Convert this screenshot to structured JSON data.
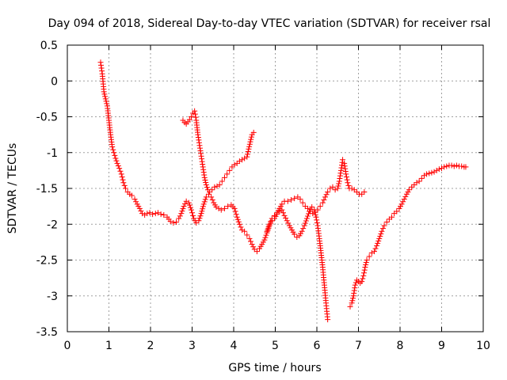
{
  "chart_data": {
    "type": "scatter",
    "title": "Day 094 of 2018, Sidereal Day-to-day VTEC variation (SDTVAR) for receiver rsal",
    "xlabel": "GPS time / hours",
    "ylabel": "SDTVAR / TECUs",
    "xlim": [
      0,
      10
    ],
    "ylim": [
      -3.5,
      0.5
    ],
    "xticks": [
      0,
      1,
      2,
      3,
      4,
      5,
      6,
      7,
      8,
      9,
      10
    ],
    "yticks": [
      0.5,
      0,
      -0.5,
      -1,
      -1.5,
      -2,
      -2.5,
      -3,
      -3.5
    ],
    "xtick_labels": [
      "0",
      "1",
      "2",
      "3",
      "4",
      "5",
      "6",
      "7",
      "8",
      "9",
      "10"
    ],
    "ytick_labels": [
      "0.5",
      "0",
      "-0.5",
      "-1",
      "-1.5",
      "-2",
      "-2.5",
      "-3",
      "-3.5"
    ],
    "grid": true,
    "marker": "+",
    "color": "#ff0000",
    "series": [
      {
        "name": "",
        "points": [
          [
            0.8,
            0.26
          ],
          [
            0.84,
            0.1
          ],
          [
            0.88,
            -0.15
          ],
          [
            0.92,
            -0.25
          ],
          [
            0.96,
            -0.35
          ],
          [
            1.0,
            -0.55
          ],
          [
            1.04,
            -0.75
          ],
          [
            1.08,
            -0.92
          ],
          [
            1.12,
            -1.0
          ],
          [
            1.16,
            -1.08
          ],
          [
            1.2,
            -1.15
          ],
          [
            1.25,
            -1.22
          ],
          [
            1.3,
            -1.3
          ],
          [
            1.35,
            -1.42
          ],
          [
            1.4,
            -1.5
          ],
          [
            1.45,
            -1.55
          ],
          [
            1.5,
            -1.58
          ],
          [
            1.55,
            -1.6
          ],
          [
            1.62,
            -1.65
          ],
          [
            1.68,
            -1.72
          ],
          [
            1.74,
            -1.78
          ],
          [
            1.8,
            -1.85
          ],
          [
            1.86,
            -1.87
          ],
          [
            1.92,
            -1.85
          ],
          [
            1.98,
            -1.84
          ],
          [
            2.05,
            -1.86
          ],
          [
            2.12,
            -1.85
          ],
          [
            2.18,
            -1.84
          ],
          [
            2.25,
            -1.86
          ],
          [
            2.32,
            -1.87
          ],
          [
            2.4,
            -1.9
          ],
          [
            2.48,
            -1.96
          ],
          [
            2.55,
            -1.98
          ],
          [
            2.62,
            -1.97
          ],
          [
            2.68,
            -1.92
          ],
          [
            2.74,
            -1.85
          ],
          [
            2.8,
            -1.75
          ],
          [
            2.86,
            -1.68
          ],
          [
            2.92,
            -1.7
          ],
          [
            2.98,
            -1.8
          ],
          [
            3.04,
            -1.92
          ],
          [
            3.1,
            -1.98
          ],
          [
            3.16,
            -1.95
          ],
          [
            3.22,
            -1.85
          ],
          [
            3.28,
            -1.72
          ],
          [
            3.34,
            -1.62
          ],
          [
            3.4,
            -1.58
          ],
          [
            3.46,
            -1.62
          ],
          [
            3.52,
            -1.7
          ],
          [
            3.58,
            -1.76
          ],
          [
            3.64,
            -1.78
          ],
          [
            3.7,
            -1.8
          ],
          [
            3.78,
            -1.78
          ],
          [
            3.86,
            -1.75
          ],
          [
            3.94,
            -1.73
          ],
          [
            4.02,
            -1.78
          ],
          [
            4.08,
            -1.9
          ],
          [
            4.14,
            -2.0
          ],
          [
            4.2,
            -2.08
          ],
          [
            4.26,
            -2.1
          ],
          [
            4.32,
            -2.15
          ],
          [
            4.38,
            -2.2
          ],
          [
            4.44,
            -2.28
          ],
          [
            4.5,
            -2.35
          ],
          [
            4.56,
            -2.38
          ],
          [
            4.62,
            -2.34
          ],
          [
            4.68,
            -2.28
          ],
          [
            4.74,
            -2.22
          ],
          [
            4.8,
            -2.12
          ],
          [
            4.86,
            -2.02
          ],
          [
            4.92,
            -1.95
          ],
          [
            4.98,
            -1.92
          ],
          [
            5.04,
            -1.86
          ],
          [
            5.1,
            -1.82
          ],
          [
            5.16,
            -1.8
          ],
          [
            5.22,
            -1.88
          ],
          [
            5.28,
            -1.95
          ],
          [
            5.34,
            -2.02
          ],
          [
            5.4,
            -2.08
          ],
          [
            5.46,
            -2.14
          ],
          [
            5.52,
            -2.18
          ],
          [
            5.58,
            -2.16
          ],
          [
            5.64,
            -2.1
          ],
          [
            5.7,
            -2.02
          ],
          [
            5.76,
            -1.92
          ],
          [
            5.82,
            -1.82
          ],
          [
            5.88,
            -1.76
          ],
          [
            5.94,
            -1.8
          ],
          [
            5.98,
            -1.9
          ],
          [
            6.02,
            -2.02
          ],
          [
            6.06,
            -2.2
          ],
          [
            6.1,
            -2.4
          ],
          [
            6.14,
            -2.6
          ],
          [
            6.18,
            -2.85
          ],
          [
            6.22,
            -3.1
          ],
          [
            6.26,
            -3.33
          ]
        ]
      },
      {
        "name": "",
        "points": [
          [
            2.78,
            -0.55
          ],
          [
            2.82,
            -0.58
          ],
          [
            2.86,
            -0.6
          ],
          [
            2.9,
            -0.57
          ],
          [
            2.94,
            -0.54
          ],
          [
            2.98,
            -0.5
          ],
          [
            3.02,
            -0.45
          ],
          [
            3.06,
            -0.42
          ],
          [
            3.1,
            -0.55
          ],
          [
            3.14,
            -0.75
          ],
          [
            3.18,
            -0.9
          ],
          [
            3.22,
            -1.05
          ],
          [
            3.26,
            -1.2
          ],
          [
            3.3,
            -1.35
          ],
          [
            3.34,
            -1.45
          ],
          [
            3.38,
            -1.52
          ],
          [
            3.42,
            -1.55
          ],
          [
            3.48,
            -1.52
          ],
          [
            3.54,
            -1.48
          ],
          [
            3.6,
            -1.47
          ],
          [
            3.66,
            -1.45
          ],
          [
            3.72,
            -1.4
          ],
          [
            3.78,
            -1.35
          ],
          [
            3.84,
            -1.3
          ],
          [
            3.9,
            -1.25
          ],
          [
            3.96,
            -1.2
          ],
          [
            4.02,
            -1.17
          ],
          [
            4.08,
            -1.15
          ],
          [
            4.14,
            -1.12
          ],
          [
            4.2,
            -1.1
          ],
          [
            4.26,
            -1.08
          ],
          [
            4.32,
            -1.06
          ],
          [
            4.36,
            -0.95
          ],
          [
            4.4,
            -0.85
          ],
          [
            4.44,
            -0.75
          ],
          [
            4.48,
            -0.72
          ]
        ]
      },
      {
        "name": "",
        "points": [
          [
            4.8,
            -2.1
          ],
          [
            4.86,
            -2.0
          ],
          [
            4.92,
            -1.92
          ],
          [
            4.98,
            -1.88
          ],
          [
            5.04,
            -1.84
          ],
          [
            5.1,
            -1.78
          ],
          [
            5.16,
            -1.72
          ],
          [
            5.22,
            -1.68
          ],
          [
            5.3,
            -1.68
          ],
          [
            5.38,
            -1.66
          ],
          [
            5.46,
            -1.64
          ],
          [
            5.54,
            -1.62
          ],
          [
            5.6,
            -1.65
          ],
          [
            5.66,
            -1.7
          ],
          [
            5.72,
            -1.75
          ],
          [
            5.78,
            -1.78
          ],
          [
            5.84,
            -1.82
          ],
          [
            5.9,
            -1.85
          ],
          [
            5.96,
            -1.83
          ],
          [
            6.02,
            -1.8
          ],
          [
            6.08,
            -1.75
          ],
          [
            6.14,
            -1.7
          ],
          [
            6.2,
            -1.62
          ],
          [
            6.26,
            -1.55
          ],
          [
            6.32,
            -1.5
          ],
          [
            6.38,
            -1.48
          ],
          [
            6.44,
            -1.52
          ],
          [
            6.5,
            -1.5
          ],
          [
            6.54,
            -1.4
          ],
          [
            6.58,
            -1.25
          ],
          [
            6.62,
            -1.1
          ],
          [
            6.66,
            -1.15
          ],
          [
            6.7,
            -1.3
          ],
          [
            6.74,
            -1.42
          ],
          [
            6.78,
            -1.5
          ],
          [
            6.84,
            -1.5
          ],
          [
            6.9,
            -1.52
          ],
          [
            6.96,
            -1.55
          ],
          [
            7.02,
            -1.58
          ],
          [
            7.08,
            -1.58
          ],
          [
            7.14,
            -1.55
          ]
        ]
      },
      {
        "name": "",
        "points": [
          [
            6.8,
            -3.15
          ],
          [
            6.84,
            -3.1
          ],
          [
            6.88,
            -3.0
          ],
          [
            6.92,
            -2.85
          ],
          [
            6.96,
            -2.78
          ],
          [
            7.0,
            -2.8
          ],
          [
            7.04,
            -2.82
          ],
          [
            7.08,
            -2.8
          ],
          [
            7.12,
            -2.72
          ],
          [
            7.16,
            -2.6
          ],
          [
            7.2,
            -2.5
          ],
          [
            7.26,
            -2.45
          ],
          [
            7.32,
            -2.4
          ],
          [
            7.38,
            -2.38
          ],
          [
            7.44,
            -2.3
          ],
          [
            7.5,
            -2.2
          ],
          [
            7.56,
            -2.1
          ],
          [
            7.62,
            -2.02
          ],
          [
            7.68,
            -1.97
          ],
          [
            7.74,
            -1.93
          ],
          [
            7.8,
            -1.9
          ],
          [
            7.86,
            -1.85
          ],
          [
            7.92,
            -1.82
          ],
          [
            7.98,
            -1.78
          ],
          [
            8.04,
            -1.72
          ],
          [
            8.1,
            -1.65
          ],
          [
            8.16,
            -1.58
          ],
          [
            8.22,
            -1.52
          ],
          [
            8.28,
            -1.48
          ],
          [
            8.34,
            -1.45
          ],
          [
            8.4,
            -1.42
          ],
          [
            8.46,
            -1.4
          ],
          [
            8.52,
            -1.36
          ],
          [
            8.58,
            -1.32
          ],
          [
            8.64,
            -1.3
          ],
          [
            8.7,
            -1.29
          ],
          [
            8.76,
            -1.28
          ],
          [
            8.82,
            -1.27
          ],
          [
            8.88,
            -1.25
          ],
          [
            8.94,
            -1.23
          ],
          [
            9.0,
            -1.22
          ],
          [
            9.06,
            -1.2
          ],
          [
            9.12,
            -1.19
          ],
          [
            9.18,
            -1.18
          ],
          [
            9.24,
            -1.18
          ],
          [
            9.3,
            -1.19
          ],
          [
            9.36,
            -1.18
          ],
          [
            9.42,
            -1.19
          ],
          [
            9.48,
            -1.19
          ],
          [
            9.54,
            -1.2
          ],
          [
            9.58,
            -1.2
          ]
        ]
      }
    ]
  }
}
